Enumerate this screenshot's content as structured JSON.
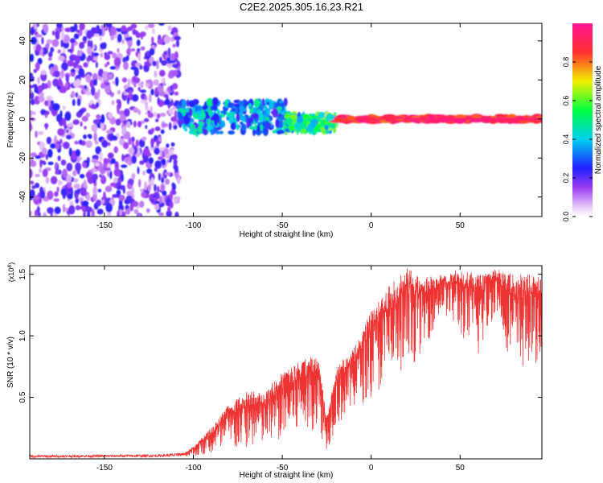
{
  "title": "C2E2.2025.305.16.23.R21",
  "chart_data": [
    {
      "type": "heatmap",
      "name": "spectrogram",
      "xlabel": "Height of straight line (km)",
      "ylabel": "Frequency (Hz)",
      "xlim": [
        -192,
        96
      ],
      "ylim": [
        -50,
        49
      ],
      "x_ticks": [
        -150,
        -100,
        -50,
        0,
        50
      ],
      "y_ticks": [
        -40,
        -20,
        0,
        20,
        40
      ],
      "x_tick_labels": [
        "-150",
        "-100",
        "-50",
        "0",
        "50"
      ],
      "y_tick_labels": [
        "-40",
        "-20",
        "0",
        "20",
        "40"
      ],
      "colorbar": {
        "label": "Normalized spectral amplitude",
        "range": [
          0,
          1
        ],
        "ticks": [
          0.0,
          0.2,
          0.4,
          0.6,
          0.8
        ],
        "tick_labels": [
          "0.0",
          "0.2",
          "0.4",
          "0.6",
          "0.8"
        ]
      },
      "regions": [
        {
          "x_range": [
            -192,
            -108
          ],
          "description_level": "noise",
          "amplitude_range": [
            0.05,
            0.25
          ],
          "freq_range": [
            -50,
            49
          ]
        },
        {
          "x_range": [
            -108,
            -48
          ],
          "freq_center": 1,
          "freq_half_width": 8,
          "amplitude_range": [
            0.2,
            0.5
          ]
        },
        {
          "x_range": [
            -48,
            -20
          ],
          "freq_center": -2,
          "freq_half_width": 4,
          "amplitude_range": [
            0.3,
            0.7
          ]
        },
        {
          "x_range": [
            -20,
            96
          ],
          "freq_center": 0,
          "freq_half_width": 1.5,
          "amplitude_range": [
            0.8,
            1.0
          ]
        }
      ]
    },
    {
      "type": "line",
      "name": "snr",
      "xlabel": "Height of straight line (km)",
      "ylabel": "SNR (10 * v/v)",
      "y_multiplier": "(x10",
      "y_multiplier_exp": "4",
      "y_multiplier_close": ")",
      "xlim": [
        -192,
        96
      ],
      "ylim": [
        0,
        1.57
      ],
      "x_ticks": [
        -150,
        -100,
        -50,
        0,
        50
      ],
      "y_ticks": [
        0.5,
        1.0,
        1.5
      ],
      "x_tick_labels": [
        "-150",
        "-100",
        "-50",
        "0",
        "50"
      ],
      "y_tick_labels": [
        "0.5",
        "1.0",
        "1.5"
      ],
      "color": "#ee3333",
      "envelope": {
        "x": [
          -192,
          -120,
          -105,
          -100,
          -90,
          -80,
          -70,
          -60,
          -50,
          -40,
          -30,
          -25,
          -20,
          -10,
          0,
          10,
          20,
          30,
          40,
          50,
          60,
          70,
          80,
          96
        ],
        "upper": [
          0.03,
          0.035,
          0.05,
          0.1,
          0.25,
          0.45,
          0.55,
          0.55,
          0.7,
          0.8,
          0.85,
          0.35,
          0.75,
          0.9,
          1.2,
          1.4,
          1.55,
          1.48,
          1.5,
          1.55,
          1.5,
          1.55,
          1.5,
          1.5
        ],
        "lower": [
          0.01,
          0.015,
          0.02,
          0.02,
          0.03,
          0.05,
          0.08,
          0.1,
          0.15,
          0.2,
          0.25,
          0.05,
          0.25,
          0.4,
          0.5,
          0.6,
          0.7,
          0.9,
          1.2,
          1.0,
          0.8,
          1.2,
          0.7,
          0.8
        ]
      }
    }
  ]
}
